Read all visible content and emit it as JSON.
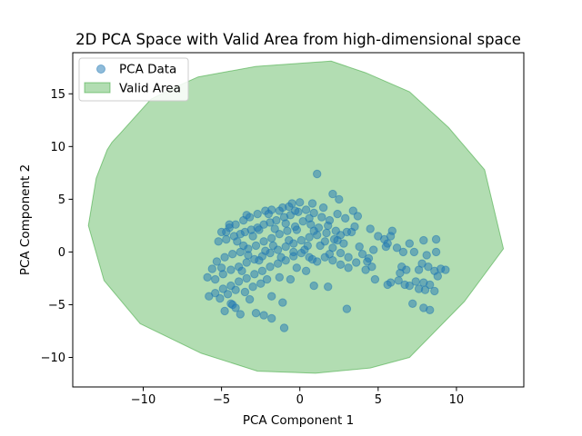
{
  "chart_data": {
    "type": "scatter",
    "title": "2D PCA Space with Valid Area from high-dimensional space",
    "xlabel": "PCA Component 1",
    "ylabel": "PCA Component 2",
    "xlim": [
      -14.5,
      14.3
    ],
    "ylim": [
      -12.8,
      18.9
    ],
    "xticks": [
      -10,
      -5,
      0,
      5,
      10
    ],
    "yticks": [
      -10,
      -5,
      0,
      5,
      10,
      15
    ],
    "grid": false,
    "legend_position": "top-left",
    "legend": [
      {
        "label": "PCA Data",
        "kind": "marker"
      },
      {
        "label": "Valid Area",
        "kind": "patch"
      }
    ],
    "colors": {
      "points": "#1f77b4",
      "area_fill": "#66bb66",
      "area_edge": "#2ca02c"
    },
    "valid_area": [
      [
        2.0,
        18.1
      ],
      [
        -2.8,
        17.6
      ],
      [
        -6.5,
        16.6
      ],
      [
        -8.0,
        15.6
      ],
      [
        -9.5,
        14.5
      ],
      [
        -11.5,
        11.2
      ],
      [
        -12.0,
        10.4
      ],
      [
        -12.3,
        9.7
      ],
      [
        -13.0,
        7.0
      ],
      [
        -13.5,
        2.5
      ],
      [
        -12.5,
        -2.7
      ],
      [
        -10.2,
        -6.8
      ],
      [
        -6.3,
        -9.6
      ],
      [
        -2.7,
        -11.3
      ],
      [
        1.0,
        -11.5
      ],
      [
        4.5,
        -11.0
      ],
      [
        7.0,
        -10.0
      ],
      [
        10.5,
        -4.7
      ],
      [
        13.0,
        0.3
      ],
      [
        11.8,
        7.8
      ],
      [
        9.5,
        11.8
      ],
      [
        7.0,
        15.2
      ],
      [
        4.2,
        17.0
      ]
    ],
    "series": [
      {
        "name": "PCA Data",
        "points": [
          [
            1.1,
            7.4
          ],
          [
            2.1,
            5.5
          ],
          [
            2.5,
            5.0
          ],
          [
            0.8,
            4.6
          ],
          [
            0.0,
            4.7
          ],
          [
            -0.5,
            4.6
          ],
          [
            -0.7,
            4.3
          ],
          [
            -1.1,
            4.2
          ],
          [
            -1.8,
            4.0
          ],
          [
            -2.2,
            3.9
          ],
          [
            -2.7,
            3.6
          ],
          [
            -3.2,
            3.3
          ],
          [
            -3.6,
            3.0
          ],
          [
            -4.1,
            2.6
          ],
          [
            -4.5,
            2.3
          ],
          [
            -5.0,
            1.9
          ],
          [
            -5.2,
            1.0
          ],
          [
            -4.7,
            1.2
          ],
          [
            -4.2,
            1.5
          ],
          [
            -3.8,
            1.7
          ],
          [
            -3.5,
            1.9
          ],
          [
            -3.1,
            2.1
          ],
          [
            -2.7,
            2.3
          ],
          [
            -2.3,
            2.6
          ],
          [
            -1.9,
            2.8
          ],
          [
            -1.5,
            3.0
          ],
          [
            -1.0,
            3.3
          ],
          [
            -0.6,
            3.5
          ],
          [
            -0.1,
            3.8
          ],
          [
            0.4,
            4.0
          ],
          [
            0.9,
            3.7
          ],
          [
            1.4,
            3.3
          ],
          [
            1.9,
            3.0
          ],
          [
            2.4,
            3.6
          ],
          [
            2.9,
            3.2
          ],
          [
            3.4,
            3.9
          ],
          [
            3.7,
            3.4
          ],
          [
            3.5,
            2.4
          ],
          [
            3.0,
            1.9
          ],
          [
            2.6,
            1.6
          ],
          [
            2.2,
            1.2
          ],
          [
            1.7,
            1.8
          ],
          [
            1.2,
            2.3
          ],
          [
            0.7,
            2.6
          ],
          [
            0.2,
            2.9
          ],
          [
            -0.3,
            2.4
          ],
          [
            -0.8,
            2.0
          ],
          [
            -1.3,
            1.7
          ],
          [
            -1.8,
            1.3
          ],
          [
            -2.3,
            1.0
          ],
          [
            -2.8,
            0.6
          ],
          [
            -3.3,
            0.3
          ],
          [
            -3.8,
            0.0
          ],
          [
            -4.3,
            -0.2
          ],
          [
            -4.8,
            -0.5
          ],
          [
            -5.3,
            -0.9
          ],
          [
            -5.6,
            -1.6
          ],
          [
            -5.9,
            -2.4
          ],
          [
            -5.4,
            -2.6
          ],
          [
            -4.9,
            -2.1
          ],
          [
            -4.4,
            -1.7
          ],
          [
            -3.9,
            -1.4
          ],
          [
            -3.4,
            -1.0
          ],
          [
            -2.9,
            -0.7
          ],
          [
            -2.4,
            -0.4
          ],
          [
            -1.9,
            -0.1
          ],
          [
            -1.4,
            0.2
          ],
          [
            -0.9,
            0.5
          ],
          [
            -0.4,
            0.8
          ],
          [
            0.1,
            1.1
          ],
          [
            0.6,
            1.4
          ],
          [
            1.1,
            1.6
          ],
          [
            1.6,
            1.0
          ],
          [
            2.1,
            0.4
          ],
          [
            2.6,
            -0.1
          ],
          [
            3.1,
            -0.5
          ],
          [
            3.6,
            -1.0
          ],
          [
            3.1,
            -1.5
          ],
          [
            2.6,
            -1.2
          ],
          [
            2.1,
            -0.8
          ],
          [
            1.6,
            -0.5
          ],
          [
            1.1,
            -0.9
          ],
          [
            0.6,
            -0.5
          ],
          [
            0.1,
            -0.1
          ],
          [
            -0.4,
            -0.4
          ],
          [
            -0.9,
            -0.8
          ],
          [
            -1.4,
            -1.1
          ],
          [
            -1.9,
            -1.4
          ],
          [
            -2.4,
            -1.8
          ],
          [
            -2.9,
            -2.1
          ],
          [
            -3.4,
            -2.5
          ],
          [
            -3.9,
            -2.8
          ],
          [
            -4.4,
            -3.2
          ],
          [
            -4.9,
            -3.5
          ],
          [
            -5.4,
            -3.9
          ],
          [
            -5.8,
            -4.2
          ],
          [
            -5.1,
            -4.4
          ],
          [
            -4.6,
            -4.0
          ],
          [
            -4.1,
            -3.6
          ],
          [
            -4.4,
            -4.9
          ],
          [
            -4.8,
            -5.6
          ],
          [
            -4.1,
            -5.3
          ],
          [
            -3.8,
            -5.9
          ],
          [
            -2.8,
            -5.8
          ],
          [
            -2.3,
            -6.0
          ],
          [
            -1.8,
            -6.3
          ],
          [
            -1.0,
            -7.2
          ],
          [
            -1.1,
            -4.8
          ],
          [
            -1.8,
            -4.2
          ],
          [
            -0.6,
            -2.6
          ],
          [
            -0.2,
            -1.5
          ],
          [
            0.4,
            -1.8
          ],
          [
            0.9,
            -3.2
          ],
          [
            1.8,
            -3.3
          ],
          [
            3.0,
            -5.4
          ],
          [
            -4.5,
            2.6
          ],
          [
            -4.0,
            1.0
          ],
          [
            -3.6,
            0.6
          ],
          [
            -3.3,
            -0.3
          ],
          [
            -3.0,
            1.5
          ],
          [
            -2.6,
            -0.8
          ],
          [
            -2.2,
            0.1
          ],
          [
            -1.6,
            2.2
          ],
          [
            -1.2,
            -0.5
          ],
          [
            -0.7,
            1.1
          ],
          [
            -0.2,
            2.1
          ],
          [
            0.3,
            0.2
          ],
          [
            0.8,
            -0.7
          ],
          [
            1.3,
            0.6
          ],
          [
            1.8,
            2.5
          ],
          [
            2.3,
            2.0
          ],
          [
            2.8,
            0.8
          ],
          [
            3.3,
            1.9
          ],
          [
            3.8,
            0.5
          ],
          [
            4.0,
            -0.2
          ],
          [
            4.3,
            -0.9
          ],
          [
            4.6,
            -1.4
          ],
          [
            4.2,
            -1.7
          ],
          [
            4.8,
            -2.6
          ],
          [
            4.4,
            -0.6
          ],
          [
            4.7,
            0.2
          ],
          [
            4.5,
            2.2
          ],
          [
            5.0,
            1.5
          ],
          [
            5.4,
            1.2
          ],
          [
            5.6,
            0.8
          ],
          [
            5.8,
            1.5
          ],
          [
            5.9,
            2.0
          ],
          [
            5.5,
            0.5
          ],
          [
            6.2,
            0.4
          ],
          [
            6.6,
            0.0
          ],
          [
            6.5,
            -1.4
          ],
          [
            6.4,
            -2.0
          ],
          [
            6.8,
            -1.7
          ],
          [
            6.3,
            -2.7
          ],
          [
            5.8,
            -2.9
          ],
          [
            5.6,
            -3.1
          ],
          [
            6.7,
            -3.1
          ],
          [
            7.0,
            -3.2
          ],
          [
            7.4,
            -2.8
          ],
          [
            7.6,
            -3.5
          ],
          [
            7.2,
            -4.9
          ],
          [
            7.9,
            -5.3
          ],
          [
            8.3,
            -5.5
          ],
          [
            8.6,
            -3.7
          ],
          [
            8.3,
            -3.1
          ],
          [
            8.0,
            -3.6
          ],
          [
            7.9,
            -2.9
          ],
          [
            7.6,
            -1.7
          ],
          [
            7.8,
            -1.1
          ],
          [
            8.2,
            -1.4
          ],
          [
            8.6,
            -1.8
          ],
          [
            9.0,
            -1.6
          ],
          [
            8.8,
            -2.3
          ],
          [
            9.3,
            -1.7
          ],
          [
            7.3,
            0.0
          ],
          [
            8.1,
            -0.3
          ],
          [
            8.7,
            0.0
          ],
          [
            8.7,
            1.2
          ],
          [
            7.9,
            1.1
          ],
          [
            7.0,
            0.8
          ],
          [
            -3.4,
            3.5
          ],
          [
            -2.0,
            3.6
          ],
          [
            -1.3,
            3.9
          ],
          [
            0.6,
            3.2
          ],
          [
            1.5,
            4.2
          ],
          [
            -0.9,
            2.7
          ],
          [
            -2.6,
            2.1
          ],
          [
            -4.7,
            1.9
          ],
          [
            -5.0,
            -1.5
          ],
          [
            -3.7,
            -1.8
          ],
          [
            -2.1,
            -2.6
          ],
          [
            -1.3,
            -2.4
          ],
          [
            -0.4,
            0.0
          ],
          [
            0.5,
            0.6
          ],
          [
            1.9,
            -0.2
          ],
          [
            2.4,
            1.1
          ],
          [
            -3.0,
            -3.3
          ],
          [
            -3.5,
            -3.8
          ],
          [
            -4.3,
            -5.0
          ],
          [
            -3.2,
            -4.5
          ],
          [
            -2.5,
            -3.0
          ],
          [
            -0.3,
            3.9
          ],
          [
            0.9,
            2.0
          ],
          [
            -1.7,
            0.6
          ]
        ]
      }
    ]
  }
}
